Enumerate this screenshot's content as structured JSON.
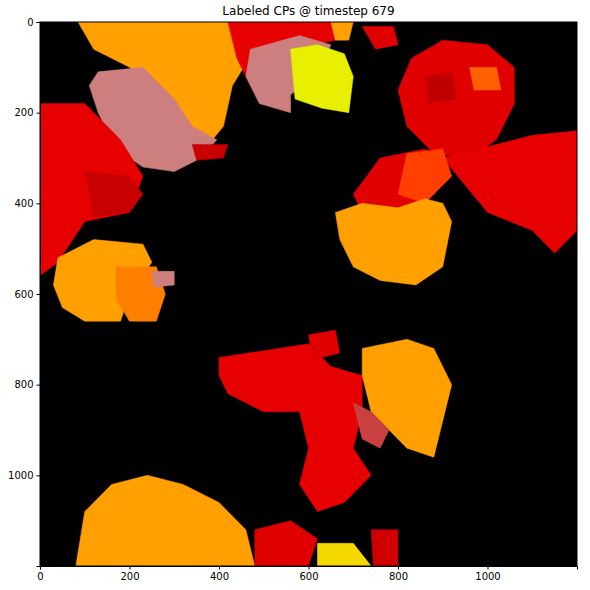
{
  "chart_data": {
    "type": "image",
    "title": "Labeled CPs @ timestep 679",
    "xlim": [
      0,
      1200
    ],
    "ylim": [
      1200,
      0
    ],
    "xticks": [
      0,
      200,
      400,
      600,
      800,
      1000
    ],
    "yticks": [
      0,
      200,
      400,
      600,
      800,
      1000
    ],
    "regions": [
      {
        "color": "#ffa000",
        "points": [
          [
            85,
            0
          ],
          [
            490,
            0
          ],
          [
            480,
            60
          ],
          [
            430,
            140
          ],
          [
            410,
            230
          ],
          [
            360,
            290
          ],
          [
            300,
            200
          ],
          [
            200,
            100
          ],
          [
            120,
            60
          ]
        ]
      },
      {
        "color": "#cd7f7f",
        "points": [
          [
            130,
            110
          ],
          [
            230,
            100
          ],
          [
            300,
            170
          ],
          [
            340,
            230
          ],
          [
            395,
            260
          ],
          [
            360,
            300
          ],
          [
            300,
            330
          ],
          [
            230,
            320
          ],
          [
            170,
            280
          ],
          [
            130,
            200
          ],
          [
            110,
            140
          ]
        ]
      },
      {
        "color": "#c80000",
        "points": [
          [
            340,
            270
          ],
          [
            420,
            270
          ],
          [
            410,
            300
          ],
          [
            350,
            305
          ]
        ]
      },
      {
        "color": "#e60000",
        "points": [
          [
            420,
            0
          ],
          [
            650,
            0
          ],
          [
            660,
            40
          ],
          [
            560,
            60
          ],
          [
            470,
            140
          ],
          [
            440,
            80
          ]
        ]
      },
      {
        "color": "#cd7f7f",
        "points": [
          [
            470,
            60
          ],
          [
            580,
            30
          ],
          [
            650,
            50
          ],
          [
            620,
            120
          ],
          [
            560,
            160
          ],
          [
            560,
            200
          ],
          [
            490,
            180
          ],
          [
            460,
            120
          ]
        ]
      },
      {
        "color": "#e8ef00",
        "points": [
          [
            560,
            60
          ],
          [
            620,
            50
          ],
          [
            680,
            70
          ],
          [
            700,
            120
          ],
          [
            690,
            200
          ],
          [
            630,
            190
          ],
          [
            570,
            170
          ]
        ]
      },
      {
        "color": "#ffa000",
        "points": [
          [
            650,
            0
          ],
          [
            700,
            0
          ],
          [
            690,
            40
          ],
          [
            660,
            40
          ]
        ]
      },
      {
        "color": "#e00000",
        "points": [
          [
            720,
            10
          ],
          [
            790,
            10
          ],
          [
            800,
            50
          ],
          [
            750,
            60
          ]
        ]
      },
      {
        "color": "#e00000",
        "points": [
          [
            830,
            80
          ],
          [
            900,
            40
          ],
          [
            1000,
            50
          ],
          [
            1060,
            100
          ],
          [
            1060,
            180
          ],
          [
            1020,
            260
          ],
          [
            960,
            300
          ],
          [
            880,
            290
          ],
          [
            820,
            230
          ],
          [
            800,
            150
          ]
        ]
      },
      {
        "color": "#ff6000",
        "points": [
          [
            960,
            100
          ],
          [
            1020,
            100
          ],
          [
            1030,
            150
          ],
          [
            970,
            150
          ]
        ]
      },
      {
        "color": "#c00000",
        "points": [
          [
            860,
            120
          ],
          [
            920,
            110
          ],
          [
            930,
            170
          ],
          [
            870,
            180
          ]
        ]
      },
      {
        "color": "#e60000",
        "points": [
          [
            900,
            300
          ],
          [
            1100,
            250
          ],
          [
            1200,
            240
          ],
          [
            1200,
            460
          ],
          [
            1150,
            510
          ],
          [
            1100,
            460
          ],
          [
            1000,
            420
          ],
          [
            950,
            360
          ]
        ]
      },
      {
        "color": "#e00000",
        "points": [
          [
            700,
            380
          ],
          [
            760,
            300
          ],
          [
            860,
            280
          ],
          [
            900,
            300
          ],
          [
            880,
            380
          ],
          [
            800,
            420
          ],
          [
            720,
            420
          ]
        ]
      },
      {
        "color": "#ff4000",
        "points": [
          [
            820,
            290
          ],
          [
            900,
            280
          ],
          [
            920,
            340
          ],
          [
            860,
            400
          ],
          [
            800,
            380
          ]
        ]
      },
      {
        "color": "#ffa000",
        "points": [
          [
            660,
            420
          ],
          [
            720,
            400
          ],
          [
            800,
            410
          ],
          [
            860,
            390
          ],
          [
            900,
            400
          ],
          [
            920,
            440
          ],
          [
            900,
            540
          ],
          [
            840,
            580
          ],
          [
            760,
            570
          ],
          [
            700,
            540
          ],
          [
            670,
            480
          ]
        ]
      },
      {
        "color": "#e60000",
        "points": [
          [
            0,
            180
          ],
          [
            100,
            180
          ],
          [
            180,
            260
          ],
          [
            230,
            340
          ],
          [
            200,
            420
          ],
          [
            100,
            440
          ],
          [
            40,
            530
          ],
          [
            0,
            560
          ]
        ]
      },
      {
        "color": "#c80000",
        "points": [
          [
            100,
            330
          ],
          [
            200,
            340
          ],
          [
            230,
            380
          ],
          [
            200,
            420
          ],
          [
            120,
            430
          ]
        ]
      },
      {
        "color": "#ffa000",
        "points": [
          [
            40,
            520
          ],
          [
            120,
            480
          ],
          [
            230,
            490
          ],
          [
            250,
            530
          ],
          [
            200,
            600
          ],
          [
            180,
            660
          ],
          [
            100,
            660
          ],
          [
            50,
            630
          ],
          [
            30,
            580
          ]
        ]
      },
      {
        "color": "#ff8000",
        "points": [
          [
            170,
            540
          ],
          [
            260,
            540
          ],
          [
            280,
            600
          ],
          [
            260,
            660
          ],
          [
            200,
            660
          ],
          [
            170,
            610
          ]
        ]
      },
      {
        "color": "#cd7f7f",
        "points": [
          [
            250,
            550
          ],
          [
            300,
            550
          ],
          [
            300,
            580
          ],
          [
            255,
            585
          ]
        ]
      },
      {
        "color": "#e60000",
        "points": [
          [
            400,
            740
          ],
          [
            600,
            710
          ],
          [
            650,
            760
          ],
          [
            720,
            780
          ],
          [
            720,
            860
          ],
          [
            700,
            940
          ],
          [
            740,
            1000
          ],
          [
            680,
            1060
          ],
          [
            620,
            1080
          ],
          [
            580,
            1020
          ],
          [
            600,
            940
          ],
          [
            580,
            860
          ],
          [
            500,
            860
          ],
          [
            420,
            820
          ],
          [
            400,
            780
          ]
        ]
      },
      {
        "color": "#e00000",
        "points": [
          [
            600,
            690
          ],
          [
            660,
            680
          ],
          [
            670,
            730
          ],
          [
            610,
            745
          ]
        ]
      },
      {
        "color": "#ffa000",
        "points": [
          [
            720,
            720
          ],
          [
            820,
            700
          ],
          [
            880,
            720
          ],
          [
            920,
            800
          ],
          [
            900,
            880
          ],
          [
            880,
            960
          ],
          [
            820,
            940
          ],
          [
            780,
            900
          ],
          [
            740,
            860
          ],
          [
            720,
            780
          ]
        ]
      },
      {
        "color": "#c84040",
        "points": [
          [
            700,
            840
          ],
          [
            740,
            860
          ],
          [
            780,
            900
          ],
          [
            760,
            940
          ],
          [
            720,
            920
          ]
        ]
      },
      {
        "color": "#ffa000",
        "points": [
          [
            80,
            1200
          ],
          [
            100,
            1080
          ],
          [
            160,
            1020
          ],
          [
            240,
            1000
          ],
          [
            320,
            1020
          ],
          [
            400,
            1060
          ],
          [
            460,
            1120
          ],
          [
            480,
            1200
          ]
        ]
      },
      {
        "color": "#e00000",
        "points": [
          [
            480,
            1120
          ],
          [
            560,
            1100
          ],
          [
            620,
            1140
          ],
          [
            600,
            1200
          ],
          [
            480,
            1200
          ]
        ]
      },
      {
        "color": "#f5d800",
        "points": [
          [
            620,
            1150
          ],
          [
            700,
            1150
          ],
          [
            740,
            1200
          ],
          [
            620,
            1200
          ]
        ]
      },
      {
        "color": "#d00000",
        "points": [
          [
            740,
            1120
          ],
          [
            800,
            1120
          ],
          [
            800,
            1200
          ],
          [
            745,
            1200
          ]
        ]
      }
    ]
  }
}
